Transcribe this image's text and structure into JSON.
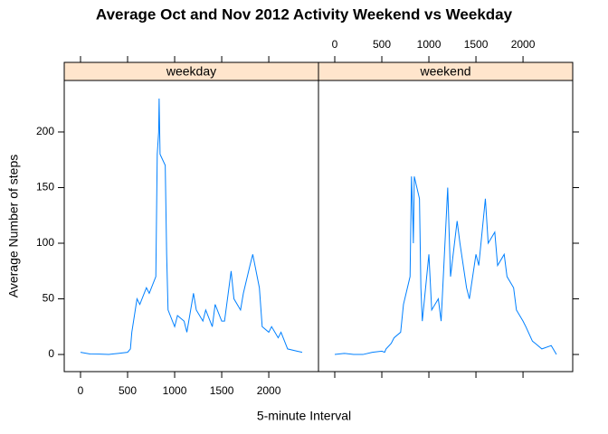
{
  "chart_data": {
    "type": "line",
    "title": "Average Oct and Nov 2012 Activity Weekend vs Weekday",
    "xlabel": "5-minute Interval",
    "ylabel": "Average Number of steps",
    "color": "#0080ff",
    "strip_color": "#ffe5cc",
    "xlim": [
      -173,
      2528
    ],
    "ylim": [
      -15.4,
      246.3
    ],
    "xticks": [
      0,
      500,
      1000,
      1500,
      2000
    ],
    "yticks": [
      0,
      50,
      100,
      150,
      200
    ],
    "x": [
      0,
      100,
      200,
      300,
      400,
      500,
      530,
      545,
      600,
      630,
      700,
      730,
      800,
      815,
      830,
      835,
      845,
      900,
      915,
      930,
      1000,
      1030,
      1100,
      1130,
      1200,
      1230,
      1300,
      1330,
      1400,
      1430,
      1500,
      1530,
      1600,
      1630,
      1700,
      1730,
      1800,
      1830,
      1900,
      1930,
      2000,
      2030,
      2100,
      2130,
      2200,
      2300,
      2355
    ],
    "series": [
      {
        "name": "weekday",
        "values": [
          2,
          0.5,
          0.3,
          0,
          1,
          2,
          5,
          20,
          50,
          45,
          60,
          55,
          70,
          180,
          200,
          230,
          180,
          170,
          90,
          40,
          25,
          35,
          30,
          20,
          55,
          40,
          30,
          40,
          25,
          45,
          30,
          30,
          75,
          50,
          40,
          55,
          80,
          90,
          60,
          25,
          20,
          25,
          15,
          20,
          5,
          3,
          2
        ]
      },
      {
        "name": "weekend",
        "values": [
          0,
          1,
          0,
          0,
          2,
          3,
          2,
          5,
          10,
          15,
          20,
          45,
          70,
          160,
          120,
          100,
          160,
          140,
          60,
          30,
          90,
          40,
          50,
          30,
          150,
          70,
          120,
          100,
          60,
          50,
          90,
          80,
          140,
          100,
          110,
          80,
          90,
          70,
          60,
          40,
          30,
          25,
          12,
          10,
          5,
          8,
          0
        ]
      }
    ]
  }
}
